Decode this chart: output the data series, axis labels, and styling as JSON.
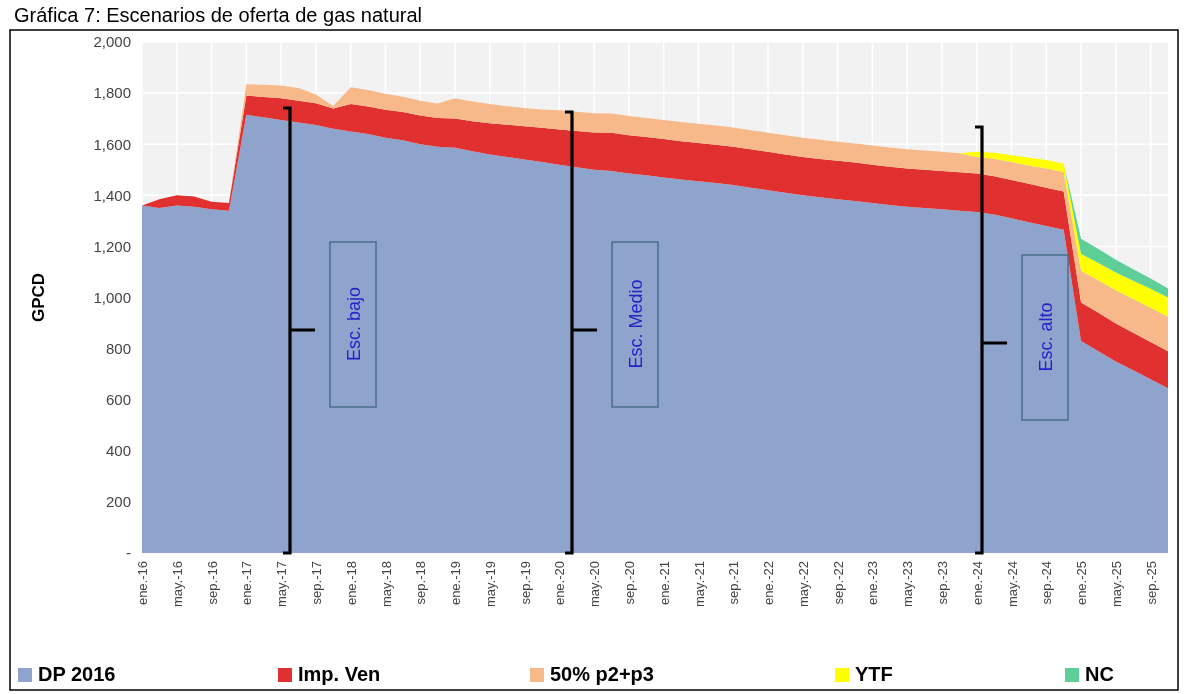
{
  "chart_data": {
    "type": "area",
    "stacked": true,
    "title": "Gráfica 7: Escenarios de oferta de gas natural",
    "ylabel": "GPCD",
    "categories": [
      "ene.-16",
      null,
      "may.-16",
      null,
      "sep.-16",
      null,
      "ene.-17",
      null,
      "may.-17",
      null,
      "sep.-17",
      null,
      "ene.-18",
      null,
      "may.-18",
      null,
      "sep.-18",
      null,
      "ene.-19",
      null,
      "may.-19",
      null,
      "sep.-19",
      null,
      "ene.-20",
      null,
      "may.-20",
      null,
      "sep.-20",
      null,
      "ene.-21",
      null,
      "may.-21",
      null,
      "sep.-21",
      null,
      "ene.-22",
      null,
      "may.-22",
      null,
      "sep.-22",
      null,
      "ene.-23",
      null,
      "may.-23",
      null,
      "sep.-23",
      null,
      "ene.-24",
      null,
      "may.-24",
      null,
      "sep.-24",
      null,
      "ene.-25",
      null,
      "may.-25",
      null,
      "sep.-25",
      null
    ],
    "series": [
      {
        "name": "DP 2016",
        "color": "#8ea4cc",
        "values": [
          1360,
          1350,
          1360,
          1355,
          1345,
          1340,
          1715,
          1705,
          1695,
          1685,
          1675,
          1660,
          1650,
          1640,
          1625,
          1615,
          1600,
          1590,
          1586,
          1572,
          1560,
          1550,
          1540,
          1530,
          1520,
          1510,
          1500,
          1495,
          1485,
          1478,
          1470,
          1462,
          1455,
          1448,
          1440,
          1430,
          1420,
          1410,
          1400,
          1392,
          1385,
          1378,
          1370,
          1362,
          1355,
          1350,
          1345,
          1340,
          1335,
          1325,
          1310,
          1295,
          1280,
          1265,
          830,
          790,
          750,
          715,
          680,
          645
        ]
      },
      {
        "name": "Imp. Ven",
        "color": "#e03030",
        "values": [
          0,
          35,
          40,
          40,
          30,
          30,
          75,
          80,
          85,
          85,
          85,
          80,
          107,
          108,
          110,
          111,
          112,
          113,
          115,
          118,
          122,
          126,
          130,
          134,
          138,
          142,
          146,
          150,
          150,
          150,
          150,
          150,
          150,
          150,
          150,
          150,
          150,
          150,
          150,
          150,
          150,
          150,
          150,
          150,
          150,
          150,
          150,
          150,
          150,
          150,
          150,
          150,
          150,
          150,
          150,
          150,
          148,
          147,
          146,
          145
        ]
      },
      {
        "name": "50% p2+p3",
        "color": "#f7b98a",
        "values": [
          0,
          0,
          0,
          0,
          0,
          0,
          45,
          48,
          50,
          50,
          35,
          10,
          66,
          64,
          62,
          60,
          58,
          56,
          79,
          77,
          75,
          73,
          72,
          72,
          75,
          75,
          75,
          75,
          75,
          75,
          75,
          75,
          75,
          75,
          75,
          75,
          75,
          75,
          75,
          75,
          75,
          75,
          75,
          75,
          75,
          75,
          75,
          75,
          65,
          68,
          70,
          72,
          75,
          76,
          125,
          128,
          130,
          132,
          134,
          135
        ]
      },
      {
        "name": "YTF",
        "color": "#ffff00",
        "values": [
          0,
          0,
          0,
          0,
          0,
          0,
          0,
          0,
          0,
          0,
          0,
          0,
          0,
          0,
          0,
          0,
          0,
          0,
          0,
          0,
          0,
          0,
          0,
          0,
          0,
          0,
          0,
          0,
          0,
          0,
          0,
          0,
          0,
          0,
          0,
          0,
          0,
          0,
          0,
          0,
          0,
          0,
          0,
          0,
          0,
          0,
          0,
          0,
          20,
          24,
          27,
          30,
          33,
          33,
          65,
          67,
          70,
          72,
          74,
          75
        ]
      },
      {
        "name": "NC",
        "color": "#5fcf9a",
        "values": [
          0,
          0,
          0,
          0,
          0,
          0,
          0,
          0,
          0,
          0,
          0,
          0,
          0,
          0,
          0,
          0,
          0,
          0,
          0,
          0,
          0,
          0,
          0,
          0,
          0,
          0,
          0,
          0,
          0,
          0,
          0,
          0,
          0,
          0,
          0,
          0,
          0,
          0,
          0,
          0,
          0,
          0,
          0,
          0,
          0,
          0,
          0,
          0,
          0,
          0,
          0,
          0,
          0,
          0,
          60,
          55,
          50,
          45,
          40,
          35
        ]
      }
    ],
    "ylim": [
      0,
      2000
    ],
    "yticks": [
      {
        "value": 0,
        "label": "-"
      },
      200,
      400,
      600,
      800,
      {
        "value": 1000,
        "label": "1,000"
      },
      {
        "value": 1200,
        "label": "1,200"
      },
      {
        "value": 1400,
        "label": "1,400"
      },
      {
        "value": 1600,
        "label": "1,600"
      },
      {
        "value": 1800,
        "label": "1,800"
      },
      {
        "value": 2000,
        "label": "2,000"
      }
    ],
    "grid": true,
    "legend": "bottom",
    "annotations": [
      "Esc. bajo",
      "Esc. Medio",
      "Esc. alto"
    ]
  }
}
